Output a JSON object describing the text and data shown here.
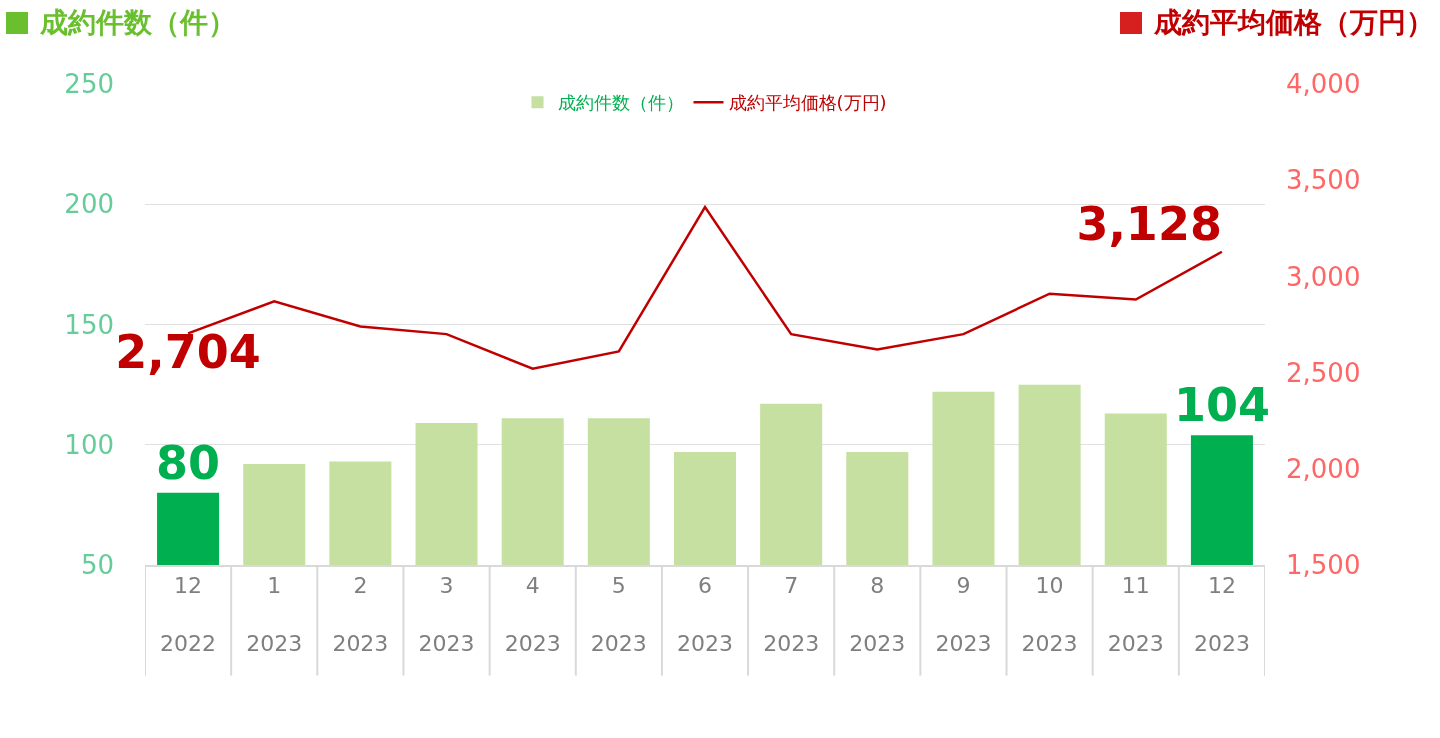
{
  "chart_data": {
    "type": "bar",
    "ylabel": "成約件数（件）",
    "y2label": "成約平均価格（万円）",
    "categories": [
      "12\n2022",
      "1\n2023",
      "2\n2023",
      "3\n2023",
      "4\n2023",
      "5\n2023",
      "6\n2023",
      "7\n2023",
      "8\n2023",
      "9\n2023",
      "10\n2023",
      "11\n2023",
      "12\n2023"
    ],
    "series": [
      {
        "name": "成約件数（件）",
        "color": "#c5e0a0",
        "colors": [
          "#00b050",
          "#c5e0a0",
          "#c5e0a0",
          "#c5e0a0",
          "#c5e0a0",
          "#c5e0a0",
          "#c5e0a0",
          "#c5e0a0",
          "#c5e0a0",
          "#c5e0a0",
          "#c5e0a0",
          "#c5e0a0",
          "#00b050"
        ],
        "values": [
          80,
          92,
          93,
          109,
          111,
          111,
          97,
          117,
          97,
          122,
          125,
          113,
          104
        ],
        "value_labels": [
          "80",
          null,
          null,
          null,
          null,
          null,
          null,
          null,
          null,
          null,
          null,
          null,
          "104"
        ]
      },
      {
        "name": "成約平均価格(万円)",
        "type": "line",
        "axis": "y2",
        "color": "#c00000",
        "values": [
          2704,
          2870,
          2740,
          2700,
          2520,
          2610,
          3360,
          2700,
          2620,
          2700,
          2910,
          2880,
          3128
        ],
        "value_labels": [
          "2,704",
          null,
          null,
          null,
          null,
          null,
          null,
          null,
          null,
          null,
          null,
          null,
          "3,128"
        ]
      }
    ],
    "ylim": [
      50,
      250
    ],
    "yticks": [
      50,
      100,
      150,
      200,
      250
    ],
    "y2lim": [
      1500,
      4000
    ],
    "y2ticks": [
      {
        "value": 1500,
        "label": "1,500"
      },
      {
        "value": 2000,
        "label": "2,000"
      },
      {
        "value": 2500,
        "label": "2,500"
      },
      {
        "value": 3000,
        "label": "3,000"
      },
      {
        "value": 3500,
        "label": "3,500"
      },
      {
        "value": 4000,
        "label": "4,000"
      }
    ],
    "grid": "y",
    "legend": "top",
    "line_style": "solid",
    "marker": "none"
  }
}
